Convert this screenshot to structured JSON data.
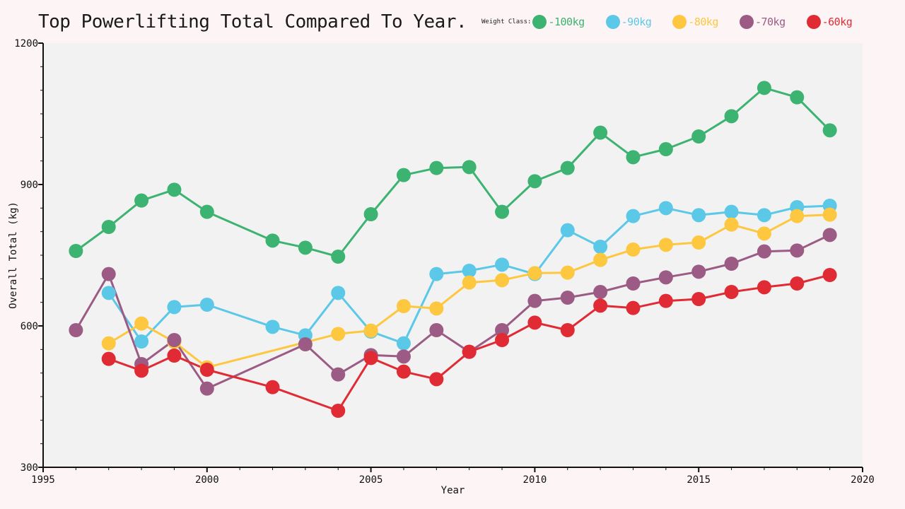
{
  "chart_data": {
    "type": "line",
    "title": "Top Powerlifting Total Compared To Year.",
    "xlabel": "Year",
    "ylabel": "Overall Total (kg)",
    "xlim": [
      1995,
      2020
    ],
    "ylim": [
      300,
      1200
    ],
    "x_ticks": [
      1995,
      2000,
      2005,
      2010,
      2015,
      2020
    ],
    "y_ticks": [
      300,
      600,
      900,
      1200
    ],
    "grid": false,
    "legend_title": "Weight Class:",
    "legend_position": "top",
    "series": [
      {
        "name": "-100kg",
        "color": "#3cb371",
        "x": [
          1996,
          1997,
          1998,
          1999,
          2000,
          2002,
          2003,
          2004,
          2005,
          2006,
          2007,
          2008,
          2009,
          2010,
          2011,
          2012,
          2013,
          2014,
          2015,
          2016,
          2017,
          2018,
          2019
        ],
        "y": [
          759,
          810,
          866,
          889,
          842,
          781,
          766,
          747,
          837,
          920,
          935,
          937,
          842,
          907,
          935,
          1010,
          958,
          975,
          1002,
          1045,
          1105,
          1085,
          1015
        ]
      },
      {
        "name": "-90kg",
        "color": "#5bc8e8",
        "x": [
          1997,
          1998,
          1999,
          2000,
          2002,
          2003,
          2004,
          2005,
          2006,
          2007,
          2008,
          2009,
          2010,
          2011,
          2012,
          2013,
          2014,
          2015,
          2016,
          2017,
          2018,
          2019
        ],
        "y": [
          670,
          567,
          640,
          645,
          598,
          580,
          670,
          588,
          563,
          710,
          717,
          730,
          710,
          803,
          768,
          833,
          850,
          835,
          842,
          835,
          852,
          855
        ]
      },
      {
        "name": "-80kg",
        "color": "#fdc740",
        "x": [
          1997,
          1998,
          1999,
          2000,
          2004,
          2005,
          2006,
          2007,
          2008,
          2009,
          2010,
          2011,
          2012,
          2013,
          2014,
          2015,
          2016,
          2017,
          2018,
          2019
        ],
        "y": [
          563,
          605,
          566,
          512,
          583,
          590,
          642,
          637,
          692,
          697,
          712,
          713,
          740,
          762,
          772,
          777,
          815,
          796,
          833,
          836
        ]
      },
      {
        "name": "-70kg",
        "color": "#9b5b84",
        "x": [
          1996,
          1997,
          1998,
          1999,
          2000,
          2003,
          2004,
          2005,
          2006,
          2007,
          2008,
          2009,
          2010,
          2011,
          2012,
          2013,
          2014,
          2015,
          2016,
          2017,
          2018,
          2019
        ],
        "y": [
          591,
          710,
          519,
          570,
          467,
          561,
          497,
          538,
          535,
          591,
          545,
          591,
          653,
          660,
          672,
          690,
          703,
          715,
          732,
          758,
          760,
          793
        ]
      },
      {
        "name": "-60kg",
        "color": "#e02b35",
        "x": [
          1997,
          1998,
          1999,
          2000,
          2002,
          2004,
          2005,
          2006,
          2007,
          2008,
          2009,
          2010,
          2011,
          2012,
          2013,
          2014,
          2015,
          2016,
          2017,
          2018,
          2019
        ],
        "y": [
          530,
          505,
          537,
          507,
          470,
          420,
          532,
          503,
          487,
          545,
          570,
          607,
          591,
          643,
          638,
          653,
          657,
          672,
          682,
          690,
          708
        ]
      }
    ]
  }
}
